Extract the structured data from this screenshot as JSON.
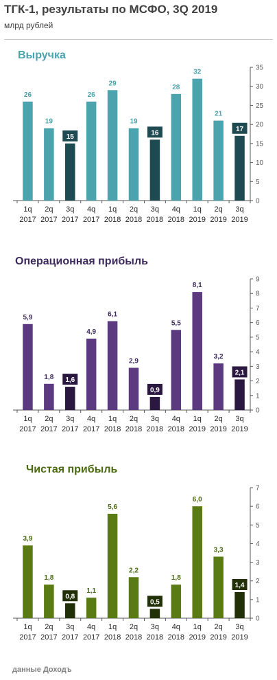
{
  "header": {
    "title": "ТГК-1, результаты по МСФО, 3Q 2019",
    "subtitle": "млрд рублей"
  },
  "source": "данные Доходъ",
  "chart_data": [
    {
      "type": "bar",
      "title": "Выручка",
      "categories": [
        [
          "1q",
          "2017"
        ],
        [
          "2q",
          "2017"
        ],
        [
          "3q",
          "2017"
        ],
        [
          "4q",
          "2017"
        ],
        [
          "1q",
          "2018"
        ],
        [
          "2q",
          "2018"
        ],
        [
          "3q",
          "2018"
        ],
        [
          "4q",
          "2018"
        ],
        [
          "1q",
          "2019"
        ],
        [
          "2q",
          "2019"
        ],
        [
          "3q",
          "2019"
        ]
      ],
      "values": [
        26,
        19,
        15,
        26,
        29,
        19,
        16,
        28,
        32,
        21,
        17
      ],
      "value_labels": [
        "26",
        "19",
        "15",
        "26",
        "29",
        "19",
        "16",
        "28",
        "32",
        "21",
        "17"
      ],
      "highlight": [
        false,
        false,
        true,
        false,
        false,
        false,
        true,
        false,
        false,
        false,
        true
      ],
      "ylim": [
        0,
        35
      ],
      "yticks": [
        0,
        5,
        10,
        15,
        20,
        25,
        30,
        35
      ],
      "ytick_labels": [
        "0",
        "5",
        "10",
        "15",
        "20",
        "25",
        "30",
        "35"
      ],
      "y_axis_side": "right",
      "grid": false,
      "colors": {
        "bar": "#4aa3ad",
        "highlight": "#1e4a52",
        "title": "#4aa3ad",
        "label": "#4aa3ad",
        "highlight_label_text": "#ffffff"
      }
    },
    {
      "type": "bar",
      "title": "Операционная прибыль",
      "categories": [
        [
          "1q",
          "2017"
        ],
        [
          "2q",
          "2017"
        ],
        [
          "3q",
          "2017"
        ],
        [
          "4q",
          "2017"
        ],
        [
          "1q",
          "2018"
        ],
        [
          "2q",
          "2018"
        ],
        [
          "3q",
          "2018"
        ],
        [
          "4q",
          "2018"
        ],
        [
          "1q",
          "2019"
        ],
        [
          "2q",
          "2019"
        ],
        [
          "3q",
          "2019"
        ]
      ],
      "values": [
        5.9,
        1.8,
        1.6,
        4.9,
        6.1,
        2.9,
        0.9,
        5.5,
        8.1,
        3.2,
        2.1
      ],
      "value_labels": [
        "5,9",
        "1,8",
        "1,6",
        "4,9",
        "6,1",
        "2,9",
        "0,9",
        "5,5",
        "8,1",
        "3,2",
        "2,1"
      ],
      "highlight": [
        false,
        false,
        true,
        false,
        false,
        false,
        true,
        false,
        false,
        false,
        true
      ],
      "ylim": [
        0,
        9
      ],
      "yticks": [
        0,
        1,
        2,
        3,
        4,
        5,
        6,
        7,
        8,
        9
      ],
      "ytick_labels": [
        "0",
        "1",
        "2",
        "3",
        "4",
        "5",
        "6",
        "7",
        "8",
        "9"
      ],
      "y_axis_side": "right",
      "grid": false,
      "colors": {
        "bar": "#5b3a80",
        "highlight": "#2a1840",
        "title": "#3d2a5c",
        "label": "#3d2a5c",
        "highlight_label_text": "#ffffff"
      }
    },
    {
      "type": "bar",
      "title": "Чистая прибыль",
      "categories": [
        [
          "1q",
          "2017"
        ],
        [
          "2q",
          "2017"
        ],
        [
          "3q",
          "2017"
        ],
        [
          "4q",
          "2017"
        ],
        [
          "1q",
          "2018"
        ],
        [
          "2q",
          "2018"
        ],
        [
          "3q",
          "2018"
        ],
        [
          "4q",
          "2018"
        ],
        [
          "1q",
          "2019"
        ],
        [
          "2q",
          "2019"
        ],
        [
          "3q",
          "2019"
        ]
      ],
      "values": [
        3.9,
        1.8,
        0.8,
        1.1,
        5.6,
        2.2,
        0.5,
        1.8,
        6.0,
        3.3,
        1.4
      ],
      "value_labels": [
        "3,9",
        "1,8",
        "0,8",
        "1,1",
        "5,6",
        "2,2",
        "0,5",
        "1,8",
        "6,0",
        "3,3",
        "1,4"
      ],
      "highlight": [
        false,
        false,
        true,
        false,
        false,
        false,
        true,
        false,
        false,
        false,
        true
      ],
      "ylim": [
        0,
        7
      ],
      "yticks": [
        0,
        1,
        2,
        3,
        4,
        5,
        6,
        7
      ],
      "ytick_labels": [
        "0",
        "1",
        "2",
        "3",
        "4",
        "5",
        "6",
        "7"
      ],
      "y_axis_side": "right",
      "grid": false,
      "colors": {
        "bar": "#5a7a14",
        "highlight": "#223008",
        "title": "#4a6a10",
        "label": "#4a6a10",
        "highlight_label_text": "#ffffff"
      }
    }
  ]
}
